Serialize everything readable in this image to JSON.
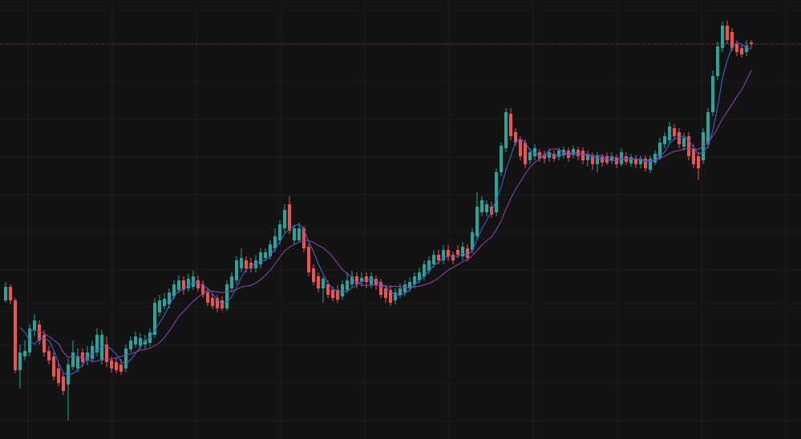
{
  "chart_data": {
    "type": "candlestick",
    "title": "",
    "grid": true,
    "ylim": [
      0,
      109.6
    ],
    "colors": {
      "background": "#131313",
      "up": "#26a69a",
      "down": "#ef5350",
      "grid": "#1d1d1d",
      "price_line": "#a8383a"
    },
    "moving_average_colors": [
      "#3a63d6",
      "#8b3fae"
    ],
    "candles": [
      [
        34.6,
        39.2,
        34.0,
        38.0
      ],
      [
        38.0,
        38.6,
        33.6,
        34.6
      ],
      [
        34.6,
        35.2,
        16.4,
        17.2
      ],
      [
        17.2,
        23.6,
        12.6,
        21.6
      ],
      [
        20.6,
        24.6,
        19.6,
        22.0
      ],
      [
        21.6,
        28.6,
        20.6,
        27.6
      ],
      [
        27.2,
        31.2,
        25.6,
        29.6
      ],
      [
        28.6,
        29.6,
        23.6,
        24.6
      ],
      [
        26.0,
        27.2,
        20.6,
        21.6
      ],
      [
        22.0,
        23.2,
        18.6,
        19.6
      ],
      [
        20.6,
        21.6,
        14.6,
        15.6
      ],
      [
        17.6,
        19.2,
        13.2,
        14.0
      ],
      [
        15.6,
        16.6,
        11.0,
        12.0
      ],
      [
        13.6,
        20.0,
        4.6,
        18.6
      ],
      [
        18.0,
        24.6,
        17.2,
        21.6
      ],
      [
        17.6,
        22.6,
        16.6,
        20.6
      ],
      [
        21.6,
        22.6,
        18.0,
        19.2
      ],
      [
        19.6,
        23.2,
        18.4,
        21.6
      ],
      [
        20.0,
        24.6,
        19.2,
        23.2
      ],
      [
        21.6,
        27.6,
        20.6,
        26.0
      ],
      [
        19.6,
        27.2,
        18.6,
        26.0
      ],
      [
        23.6,
        25.6,
        18.0,
        19.2
      ],
      [
        19.6,
        20.6,
        16.6,
        17.6
      ],
      [
        19.2,
        20.4,
        16.4,
        17.2
      ],
      [
        18.6,
        20.0,
        16.0,
        16.8
      ],
      [
        17.6,
        23.6,
        16.6,
        22.6
      ],
      [
        22.4,
        25.6,
        21.6,
        24.6
      ],
      [
        23.6,
        26.8,
        22.8,
        25.6
      ],
      [
        23.2,
        26.4,
        22.4,
        25.2
      ],
      [
        23.6,
        26.0,
        22.6,
        24.6
      ],
      [
        24.0,
        27.6,
        23.2,
        26.6
      ],
      [
        26.0,
        35.2,
        25.2,
        34.0
      ],
      [
        31.6,
        36.0,
        30.6,
        34.6
      ],
      [
        33.2,
        36.4,
        32.4,
        35.0
      ],
      [
        33.6,
        37.6,
        32.6,
        36.6
      ],
      [
        35.6,
        39.6,
        34.8,
        38.6
      ],
      [
        37.2,
        40.8,
        36.4,
        39.6
      ],
      [
        39.6,
        40.6,
        36.0,
        37.2
      ],
      [
        37.6,
        41.2,
        36.8,
        40.0
      ],
      [
        38.0,
        42.0,
        37.2,
        40.6
      ],
      [
        39.6,
        40.8,
        36.8,
        37.6
      ],
      [
        38.6,
        39.6,
        35.2,
        36.0
      ],
      [
        36.6,
        37.6,
        33.2,
        34.0
      ],
      [
        35.2,
        36.4,
        32.4,
        33.2
      ],
      [
        35.2,
        36.0,
        31.6,
        32.6
      ],
      [
        34.6,
        35.6,
        32.0,
        32.6
      ],
      [
        32.6,
        39.6,
        32.0,
        38.6
      ],
      [
        37.6,
        41.6,
        36.6,
        40.6
      ],
      [
        39.6,
        45.6,
        38.6,
        44.6
      ],
      [
        42.6,
        47.6,
        41.6,
        45.2
      ],
      [
        44.6,
        45.6,
        41.6,
        42.6
      ],
      [
        44.0,
        45.2,
        41.6,
        42.6
      ],
      [
        42.6,
        46.0,
        41.6,
        44.6
      ],
      [
        43.6,
        47.6,
        42.6,
        46.6
      ],
      [
        45.2,
        47.6,
        44.4,
        46.6
      ],
      [
        45.6,
        49.6,
        44.8,
        48.6
      ],
      [
        47.6,
        52.6,
        46.6,
        50.6
      ],
      [
        49.6,
        54.6,
        48.6,
        53.6
      ],
      [
        52.6,
        58.6,
        51.6,
        57.2
      ],
      [
        58.6,
        60.6,
        51.2,
        52.0
      ],
      [
        49.6,
        53.6,
        48.6,
        52.6
      ],
      [
        49.6,
        54.0,
        49.2,
        52.6
      ],
      [
        52.6,
        53.2,
        46.6,
        47.6
      ],
      [
        48.0,
        48.8,
        40.6,
        41.6
      ],
      [
        42.6,
        43.6,
        38.4,
        39.2
      ],
      [
        40.6,
        41.6,
        36.6,
        37.6
      ],
      [
        37.6,
        40.6,
        34.0,
        40.0
      ],
      [
        38.6,
        39.6,
        35.2,
        36.0
      ],
      [
        37.2,
        38.0,
        34.4,
        35.2
      ],
      [
        37.2,
        38.4,
        34.0,
        34.8
      ],
      [
        35.6,
        39.6,
        34.8,
        38.6
      ],
      [
        37.2,
        41.6,
        36.4,
        39.6
      ],
      [
        38.6,
        42.0,
        37.6,
        40.6
      ],
      [
        40.6,
        41.6,
        37.6,
        38.6
      ],
      [
        39.2,
        41.6,
        38.0,
        40.2
      ],
      [
        40.6,
        41.6,
        37.6,
        39.2
      ],
      [
        38.6,
        41.6,
        37.6,
        40.6
      ],
      [
        40.0,
        40.8,
        37.2,
        38.4
      ],
      [
        39.2,
        40.0,
        35.2,
        36.0
      ],
      [
        37.6,
        38.6,
        34.0,
        35.2
      ],
      [
        37.2,
        38.4,
        33.2,
        34.0
      ],
      [
        34.6,
        37.6,
        33.6,
        36.6
      ],
      [
        36.0,
        38.8,
        35.2,
        37.6
      ],
      [
        36.6,
        39.6,
        35.6,
        38.6
      ],
      [
        37.6,
        40.4,
        36.8,
        39.2
      ],
      [
        38.6,
        41.6,
        37.6,
        40.6
      ],
      [
        39.6,
        42.8,
        38.8,
        41.6
      ],
      [
        40.6,
        44.6,
        39.6,
        43.6
      ],
      [
        42.0,
        45.6,
        41.2,
        44.6
      ],
      [
        43.6,
        47.2,
        42.8,
        46.0
      ],
      [
        46.0,
        47.2,
        43.6,
        44.6
      ],
      [
        44.6,
        48.4,
        43.6,
        47.2
      ],
      [
        47.2,
        48.4,
        44.4,
        45.6
      ],
      [
        46.0,
        46.8,
        43.6,
        44.6
      ],
      [
        47.2,
        48.4,
        45.2,
        46.0
      ],
      [
        45.6,
        49.2,
        44.6,
        48.0
      ],
      [
        47.6,
        48.6,
        44.4,
        45.2
      ],
      [
        47.2,
        52.6,
        46.4,
        51.6
      ],
      [
        50.6,
        61.6,
        49.6,
        58.0
      ],
      [
        56.6,
        60.6,
        55.6,
        59.6
      ],
      [
        56.6,
        59.6,
        55.6,
        58.6
      ],
      [
        58.0,
        59.2,
        55.2,
        56.0
      ],
      [
        56.6,
        67.6,
        55.6,
        66.6
      ],
      [
        66.6,
        74.0,
        65.6,
        73.2
      ],
      [
        72.6,
        82.6,
        71.6,
        81.6
      ],
      [
        81.2,
        82.6,
        74.6,
        75.6
      ],
      [
        76.6,
        77.6,
        73.2,
        74.0
      ],
      [
        74.6,
        75.6,
        69.6,
        70.6
      ],
      [
        74.0,
        74.8,
        67.6,
        68.6
      ],
      [
        69.6,
        72.6,
        68.6,
        71.6
      ],
      [
        70.6,
        73.6,
        69.6,
        72.6
      ],
      [
        71.6,
        72.4,
        69.2,
        70.0
      ],
      [
        71.0,
        72.0,
        68.8,
        70.0
      ],
      [
        70.2,
        72.6,
        69.2,
        71.6
      ],
      [
        71.2,
        72.0,
        69.2,
        70.0
      ],
      [
        70.4,
        72.8,
        69.6,
        72.0
      ],
      [
        70.8,
        73.0,
        70.0,
        72.2
      ],
      [
        72.0,
        72.8,
        69.2,
        70.2
      ],
      [
        71.0,
        73.2,
        70.0,
        72.4
      ],
      [
        72.2,
        73.0,
        69.6,
        70.6
      ],
      [
        72.0,
        72.8,
        68.6,
        69.6
      ],
      [
        69.6,
        72.0,
        68.0,
        71.2
      ],
      [
        70.6,
        71.6,
        67.2,
        68.6
      ],
      [
        68.6,
        71.6,
        66.6,
        70.6
      ],
      [
        70.4,
        71.2,
        68.0,
        69.0
      ],
      [
        70.6,
        71.6,
        68.4,
        69.0
      ],
      [
        69.6,
        71.6,
        68.6,
        70.6
      ],
      [
        70.2,
        71.0,
        67.6,
        68.6
      ],
      [
        68.6,
        72.6,
        68.0,
        71.6
      ],
      [
        70.6,
        71.6,
        68.4,
        69.2
      ],
      [
        68.8,
        71.2,
        68.0,
        70.4
      ],
      [
        70.0,
        70.8,
        67.6,
        68.6
      ],
      [
        68.6,
        70.8,
        67.6,
        70.0
      ],
      [
        70.0,
        70.8,
        66.8,
        67.6
      ],
      [
        67.2,
        70.8,
        66.4,
        70.0
      ],
      [
        69.0,
        72.0,
        68.4,
        71.2
      ],
      [
        70.2,
        75.2,
        69.6,
        74.0
      ],
      [
        73.6,
        76.6,
        72.6,
        75.6
      ],
      [
        74.6,
        79.2,
        73.6,
        78.0
      ],
      [
        77.6,
        78.6,
        74.6,
        75.6
      ],
      [
        76.6,
        77.6,
        72.6,
        73.6
      ],
      [
        73.0,
        76.4,
        72.0,
        75.2
      ],
      [
        75.6,
        76.6,
        69.6,
        70.6
      ],
      [
        72.6,
        73.6,
        67.6,
        68.6
      ],
      [
        70.6,
        71.6,
        64.6,
        67.6
      ],
      [
        69.6,
        77.6,
        68.6,
        76.6
      ],
      [
        73.6,
        82.6,
        72.6,
        81.6
      ],
      [
        81.6,
        92.0,
        80.6,
        90.6
      ],
      [
        90.6,
        99.2,
        89.6,
        98.0
      ],
      [
        97.6,
        104.2,
        96.6,
        103.2
      ],
      [
        103.2,
        104.4,
        98.6,
        99.6
      ],
      [
        101.6,
        102.6,
        96.8,
        97.6
      ],
      [
        98.6,
        99.6,
        95.6,
        96.6
      ],
      [
        97.6,
        98.6,
        95.2,
        96.0
      ],
      [
        96.6,
        99.6,
        95.6,
        98.2
      ],
      [
        99.0,
        99.6,
        97.6,
        98.6
      ]
    ]
  }
}
